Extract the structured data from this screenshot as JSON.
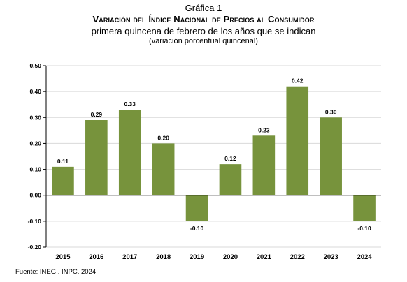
{
  "header": {
    "label": "Gráfica 1",
    "title": "Variación del Índice Nacional de Precios al Consumidor",
    "subtitle": "primera quincena de febrero de los años que se indican",
    "units": "(variación porcentual quincenal)"
  },
  "footer": {
    "source_prefix": "Fuente: ",
    "source_org": "INEGI. INPC",
    "source_year": ". 2024."
  },
  "colors": {
    "bar": "#77933c",
    "grid": "#d9d9d9"
  },
  "chart_data": {
    "type": "bar",
    "title": "Variación del Índice Nacional de Precios al Consumidor",
    "categories": [
      "2015",
      "2016",
      "2017",
      "2018",
      "2019",
      "2020",
      "2021",
      "2022",
      "2023",
      "2024"
    ],
    "values": [
      0.11,
      0.29,
      0.33,
      0.2,
      -0.1,
      0.12,
      0.23,
      0.42,
      0.3,
      -0.1
    ],
    "data_labels": [
      "0.11",
      "0.29",
      "0.33",
      "0.20",
      "-0.10",
      "0.12",
      "0.23",
      "0.42",
      "0.30",
      "-0.10"
    ],
    "ylim": [
      -0.2,
      0.5
    ],
    "yticks": [
      0.5,
      0.4,
      0.3,
      0.2,
      0.1,
      0.0,
      -0.1,
      -0.2
    ],
    "ytick_labels": [
      "0.50",
      "0.40",
      "0.30",
      "0.20",
      "0.10",
      "0.00",
      "-0.10",
      "-0.20"
    ],
    "grid": true,
    "legend": "none"
  }
}
